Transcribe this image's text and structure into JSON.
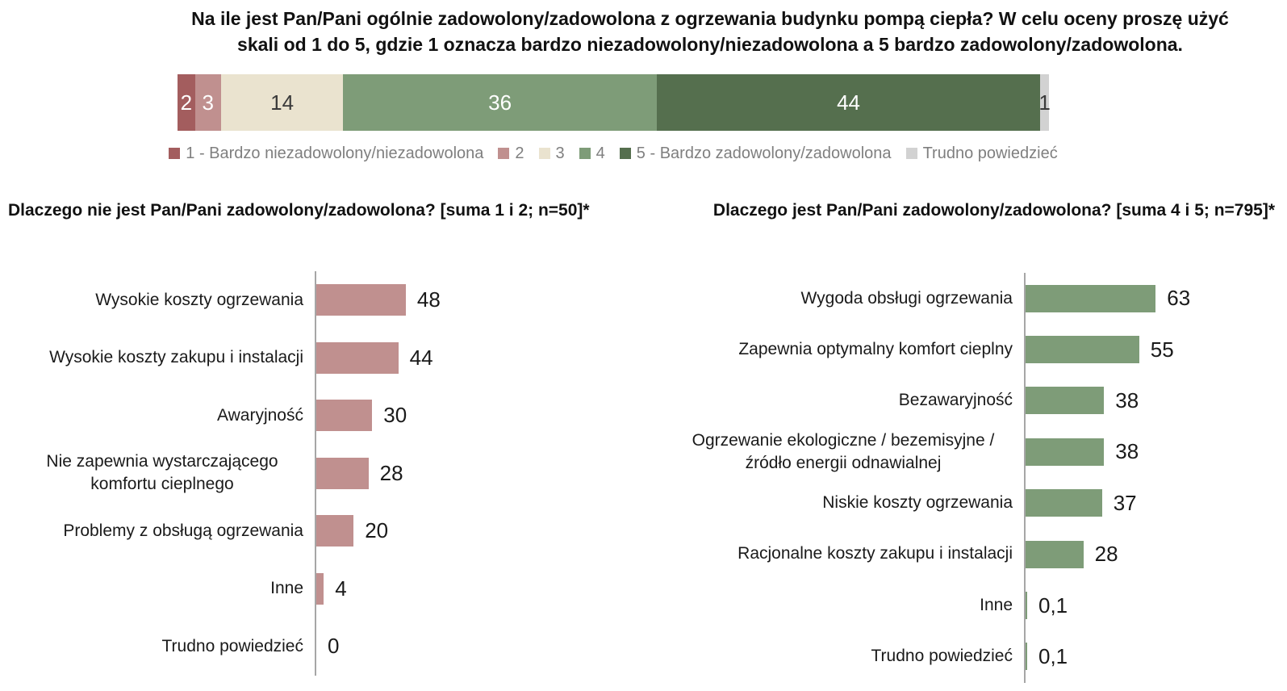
{
  "chart_data": [
    {
      "id": "overall-satisfaction",
      "type": "bar",
      "stacked": true,
      "orientation": "horizontal",
      "title": "Na ile jest Pan/Pani ogólnie zadowolony/zadowolona z ogrzewania budynku pompą ciepła? W celu oceny proszę użyć skali od 1 do 5, gdzie 1 oznacza bardzo niezadowolony/niezadowolona a 5 bardzo zadowolony/zadowolona.",
      "xlim": [
        0,
        100
      ],
      "legend_position": "bottom",
      "grid": false,
      "segments": [
        {
          "legend": "1 - Bardzo niezadowolony/niezadowolona",
          "value": 2,
          "display": "2",
          "color": "#A35D5E",
          "text_color": "#FFFFFF"
        },
        {
          "legend": "2",
          "value": 3,
          "display": "3",
          "color": "#C0908F",
          "text_color": "#FFFFFF"
        },
        {
          "legend": "3",
          "value": 14,
          "display": "14",
          "color": "#EAE3CF",
          "text_color": "#3B3B3B"
        },
        {
          "legend": "4",
          "value": 36,
          "display": "36",
          "color": "#7E9C78",
          "text_color": "#FFFFFF"
        },
        {
          "legend": "5 - Bardzo zadowolony/zadowolona",
          "value": 44,
          "display": "44",
          "color": "#556F4E",
          "text_color": "#FFFFFF"
        },
        {
          "legend": "Trudno powiedzieć",
          "value": 1,
          "display": "1",
          "color": "#D2D2D2",
          "text_color": "#3B3B3B"
        }
      ]
    },
    {
      "id": "dissatisfaction-reasons",
      "type": "bar",
      "orientation": "horizontal",
      "title": "Dlaczego nie jest Pan/Pani zadowolony/zadowolona?  [suma 1 i 2; n=50]*",
      "bar_color": "#C0908F",
      "xlim": [
        0,
        100
      ],
      "grid": false,
      "categories": [
        "Wysokie koszty ogrzewania",
        "Wysokie koszty zakupu i instalacji",
        "Awaryjność",
        "Nie zapewnia wystarczającego komfortu cieplnego",
        "Problemy z obsługą ogrzewania",
        "Inne",
        "Trudno powiedzieć"
      ],
      "values": [
        48,
        44,
        30,
        28,
        20,
        4,
        0
      ],
      "value_labels": [
        "48",
        "44",
        "30",
        "28",
        "20",
        "4",
        "0"
      ]
    },
    {
      "id": "satisfaction-reasons",
      "type": "bar",
      "orientation": "horizontal",
      "title": "Dlaczego jest Pan/Pani zadowolony/zadowolona? [suma 4 i 5; n=795]*",
      "bar_color": "#7E9C78",
      "xlim": [
        0,
        100
      ],
      "grid": false,
      "categories": [
        "Wygoda obsługi ogrzewania",
        "Zapewnia optymalny komfort cieplny",
        "Bezawaryjność",
        "Ogrzewanie ekologiczne / bezemisyjne / źródło energii odnawialnej",
        "Niskie koszty ogrzewania",
        "Racjonalne koszty zakupu i instalacji",
        "Inne",
        "Trudno powiedzieć"
      ],
      "values": [
        63,
        55,
        38,
        38,
        37,
        28,
        0.1,
        0.1
      ],
      "value_labels": [
        "63",
        "55",
        "38",
        "38",
        "37",
        "28",
        "0,1",
        "0,1"
      ]
    }
  ]
}
